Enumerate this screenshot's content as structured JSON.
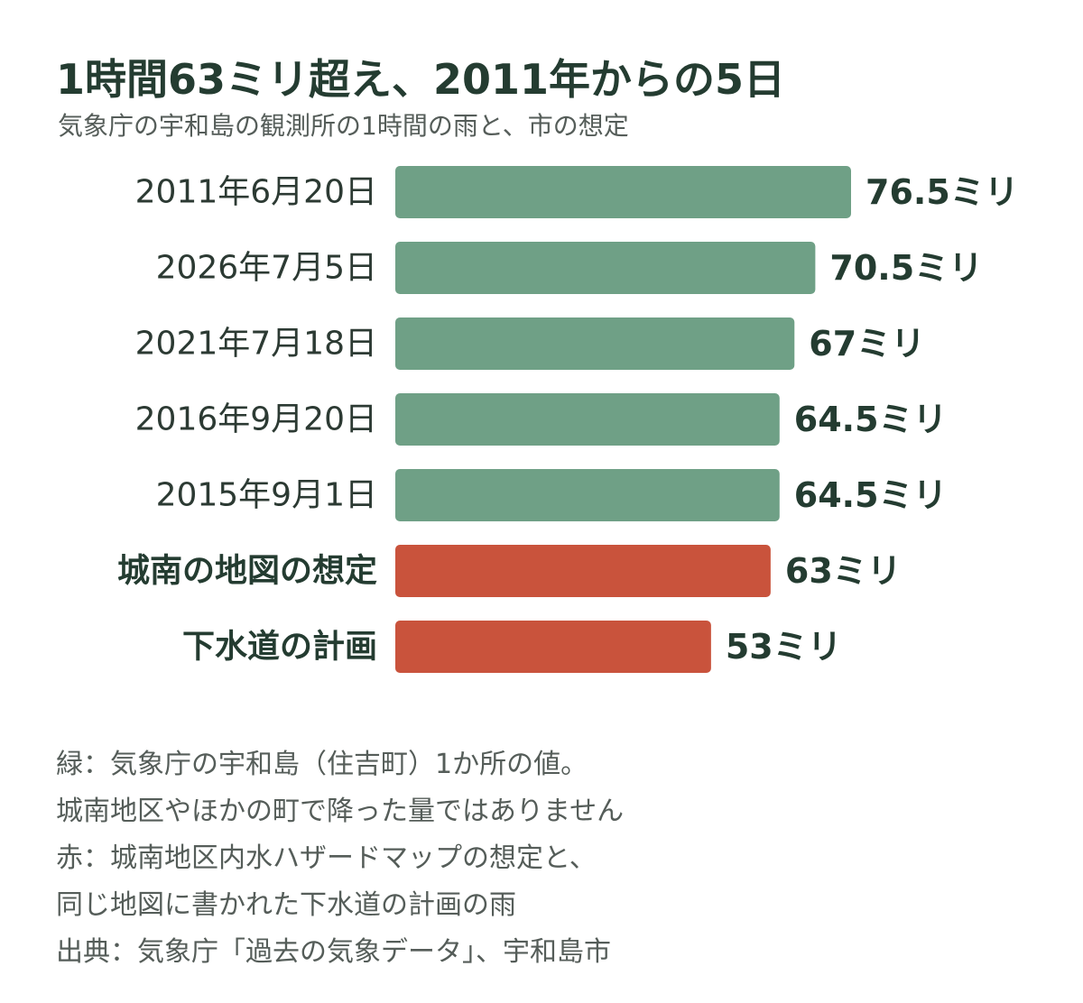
{
  "header": {
    "title": "1時間63ミリ超え、2011年からの5日",
    "subtitle": "気象庁の宇和島の観測所の1時間の雨と、市の想定"
  },
  "chart_data": {
    "type": "bar",
    "orientation": "horizontal",
    "categories": [
      "2011年6月20日",
      "2026年7月5日",
      "2021年7月18日",
      "2016年9月20日",
      "2015年9月1日",
      "城南の地図の想定",
      "下水道の計画"
    ],
    "values": [
      76.5,
      70.5,
      67,
      64.5,
      64.5,
      63,
      53
    ],
    "value_labels": [
      "76.5ミリ",
      "70.5ミリ",
      "67ミリ",
      "64.5ミリ",
      "64.5ミリ",
      "63ミリ",
      "53ミリ"
    ],
    "bar_colors": [
      "#6fa086",
      "#6fa086",
      "#6fa086",
      "#6fa086",
      "#6fa086",
      "#c9533c",
      "#c9533c"
    ],
    "bold_categories": [
      false,
      false,
      false,
      false,
      false,
      true,
      true
    ],
    "xlim": [
      0,
      76.5
    ],
    "grid": false,
    "legend": "none"
  },
  "notes": [
    "緑：気象庁の宇和島（住吉町）1か所の値。",
    "城南地区やほかの町で降った量ではありません",
    "赤：城南地区内水ハザードマップの想定と、",
    "同じ地図に書かれた下水道の計画の雨",
    "出典：気象庁「過去の気象データ」、宇和島市"
  ]
}
